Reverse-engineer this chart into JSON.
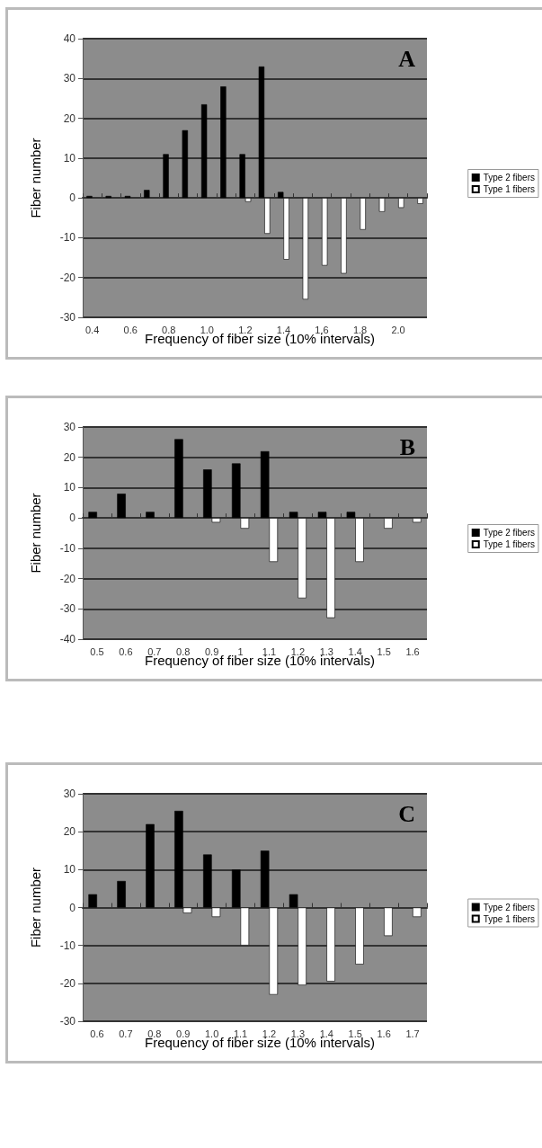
{
  "chart_data": [
    {
      "type": "bar",
      "title": "A",
      "xlabel": "Frequency of fiber size (10% intervals)",
      "ylabel": "Fiber number",
      "categories": [
        "0.4",
        null,
        "0.6",
        null,
        "0.8",
        null,
        "1.0",
        null,
        "1.2",
        null,
        "1.4",
        null,
        "1.6",
        null,
        "1.8",
        null,
        "2.0",
        null
      ],
      "series": [
        {
          "name": "Type 2 fibers",
          "color": "#000000",
          "values": [
            0.5,
            0.5,
            0.5,
            2,
            11,
            17,
            23.5,
            28,
            11,
            33,
            1.5,
            0,
            0,
            0,
            0,
            0,
            0,
            0
          ]
        },
        {
          "name": "Type 1 fibers",
          "color": "#ffffff",
          "values": [
            0,
            0,
            0,
            0,
            0,
            0,
            0,
            0,
            -1,
            -9,
            -15.5,
            -25.5,
            -17,
            -19,
            -8,
            -3.5,
            -2.5,
            -1.5
          ]
        }
      ],
      "ylim": [
        -30,
        40
      ],
      "yticks": [
        -30,
        -20,
        -10,
        0,
        10,
        20,
        30,
        40
      ],
      "grid": "y",
      "legend": "right"
    },
    {
      "type": "bar",
      "title": "B",
      "xlabel": "Frequency of fiber size (10% intervals)",
      "ylabel": "Fiber number",
      "categories": [
        "0.5",
        "0.6",
        "0.7",
        "0.8",
        "0.9",
        "1",
        "1.1",
        "1.2",
        "1.3",
        "1.4",
        "1.5",
        "1.6"
      ],
      "series": [
        {
          "name": "Type 2 fibers",
          "color": "#000000",
          "values": [
            2,
            8,
            2,
            26,
            16,
            18,
            22,
            2,
            2,
            2,
            0,
            0
          ]
        },
        {
          "name": "Type 1 fibers",
          "color": "#ffffff",
          "values": [
            0,
            0,
            0,
            0,
            -1.5,
            -3.5,
            -14.5,
            -26.5,
            -33,
            -14.5,
            -3.5,
            -1.5
          ]
        }
      ],
      "ylim": [
        -40,
        30
      ],
      "yticks": [
        -40,
        -30,
        -20,
        -10,
        0,
        10,
        20,
        30
      ],
      "grid": "y",
      "legend": "right"
    },
    {
      "type": "bar",
      "title": "C",
      "xlabel": "Frequency of fiber size (10% intervals)",
      "ylabel": "Fiber number",
      "categories": [
        "0.6",
        "0.7",
        "0.8",
        "0.9",
        "1.0",
        "1.1",
        "1.2",
        "1.3",
        "1.4",
        "1.5",
        "1.6",
        "1.7"
      ],
      "series": [
        {
          "name": "Type 2 fibers",
          "color": "#000000",
          "values": [
            3.5,
            7,
            22,
            25.5,
            14,
            10,
            15,
            3.5,
            0,
            0,
            0,
            0
          ]
        },
        {
          "name": "Type 1 fibers",
          "color": "#ffffff",
          "values": [
            0,
            0,
            0,
            -1.5,
            -2.5,
            -10,
            -23,
            -20.5,
            -19.5,
            -15,
            -7.5,
            -2.5
          ]
        }
      ],
      "ylim": [
        -30,
        30
      ],
      "yticks": [
        -30,
        -20,
        -10,
        0,
        10,
        20,
        30
      ],
      "grid": "y",
      "legend": "right"
    }
  ]
}
